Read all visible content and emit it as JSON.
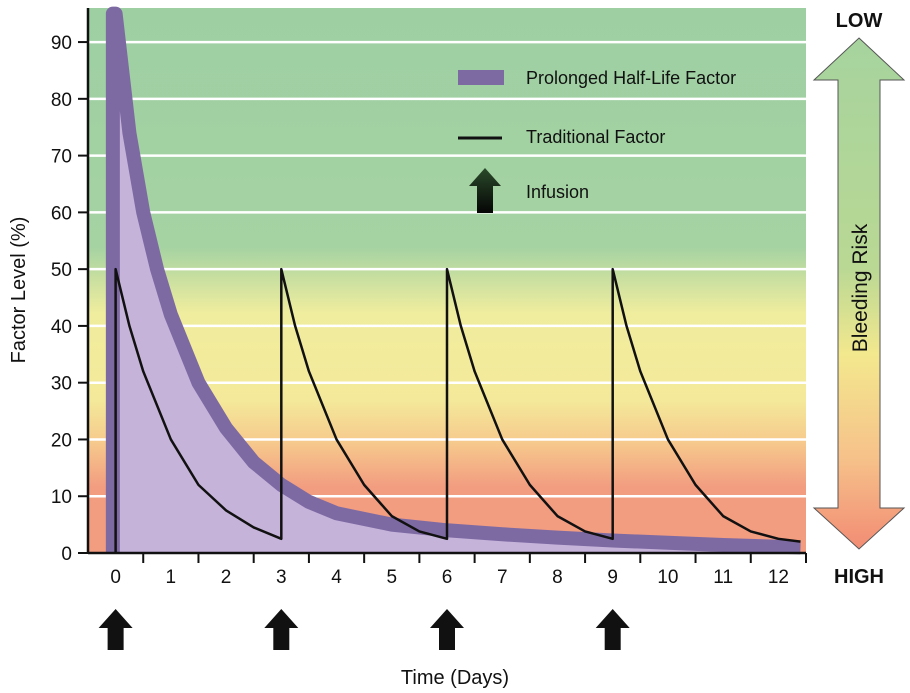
{
  "chart_data": {
    "type": "line",
    "xlabel": "Time (Days)",
    "ylabel": "Factor Level (%)",
    "xlim": [
      -0.5,
      12.5
    ],
    "ylim": [
      0,
      96
    ],
    "x_ticks": [
      "0",
      "1",
      "2",
      "3",
      "4",
      "5",
      "6",
      "7",
      "8",
      "9",
      "10",
      "11",
      "12"
    ],
    "y_ticks": [
      "0",
      "10",
      "20",
      "30",
      "40",
      "50",
      "60",
      "70",
      "80",
      "90"
    ],
    "grid": true,
    "legend_position": "top-right",
    "legend": [
      {
        "label": "Prolonged Half-Life Factor",
        "symbol": "thick-band"
      },
      {
        "label": "Traditional Factor",
        "symbol": "line"
      },
      {
        "label": "Infusion",
        "symbol": "up-arrow"
      }
    ],
    "infusion_days": [
      0,
      3,
      6,
      9
    ],
    "series": [
      {
        "name": "Prolonged Half-Life Factor",
        "x": [
          0,
          0.25,
          0.5,
          0.75,
          1,
          1.5,
          2,
          2.5,
          3,
          3.5,
          4,
          5,
          6,
          7,
          8,
          9,
          10,
          11,
          12,
          12.4
        ],
        "values": [
          95,
          74,
          60,
          50,
          42,
          30,
          22,
          16,
          12,
          9,
          7,
          5,
          4,
          3.3,
          2.7,
          2.2,
          1.8,
          1.4,
          1.1,
          1
        ]
      },
      {
        "name": "Traditional Factor",
        "x": [
          0,
          0.25,
          0.5,
          1,
          1.5,
          2,
          2.5,
          3,
          3,
          3.25,
          3.5,
          4,
          4.5,
          5,
          5.5,
          6,
          6,
          6.25,
          6.5,
          7,
          7.5,
          8,
          8.5,
          9,
          9,
          9.25,
          9.5,
          10,
          10.5,
          11,
          11.5,
          12,
          12.4
        ],
        "values": [
          50,
          40,
          32,
          20,
          12,
          7.5,
          4.5,
          2.5,
          50,
          40,
          32,
          20,
          12,
          6.5,
          3.8,
          2.5,
          50,
          40,
          32,
          20,
          12,
          6.5,
          3.8,
          2.5,
          50,
          40,
          32,
          20,
          12,
          6.5,
          3.8,
          2.5,
          2
        ]
      }
    ],
    "bleeding_risk": {
      "label": "Bleeding Risk",
      "top_label": "LOW",
      "bottom_label": "HIGH"
    },
    "colors": {
      "low_zone": "#9ed0a4",
      "mid_zone": "#f2ef9a",
      "high_zone": "#f19c82",
      "prolonged_fill": "#c6b3da",
      "prolonged_band": "#7e6aa3",
      "traditional_line": "#111111",
      "arrow": "#111111"
    }
  }
}
